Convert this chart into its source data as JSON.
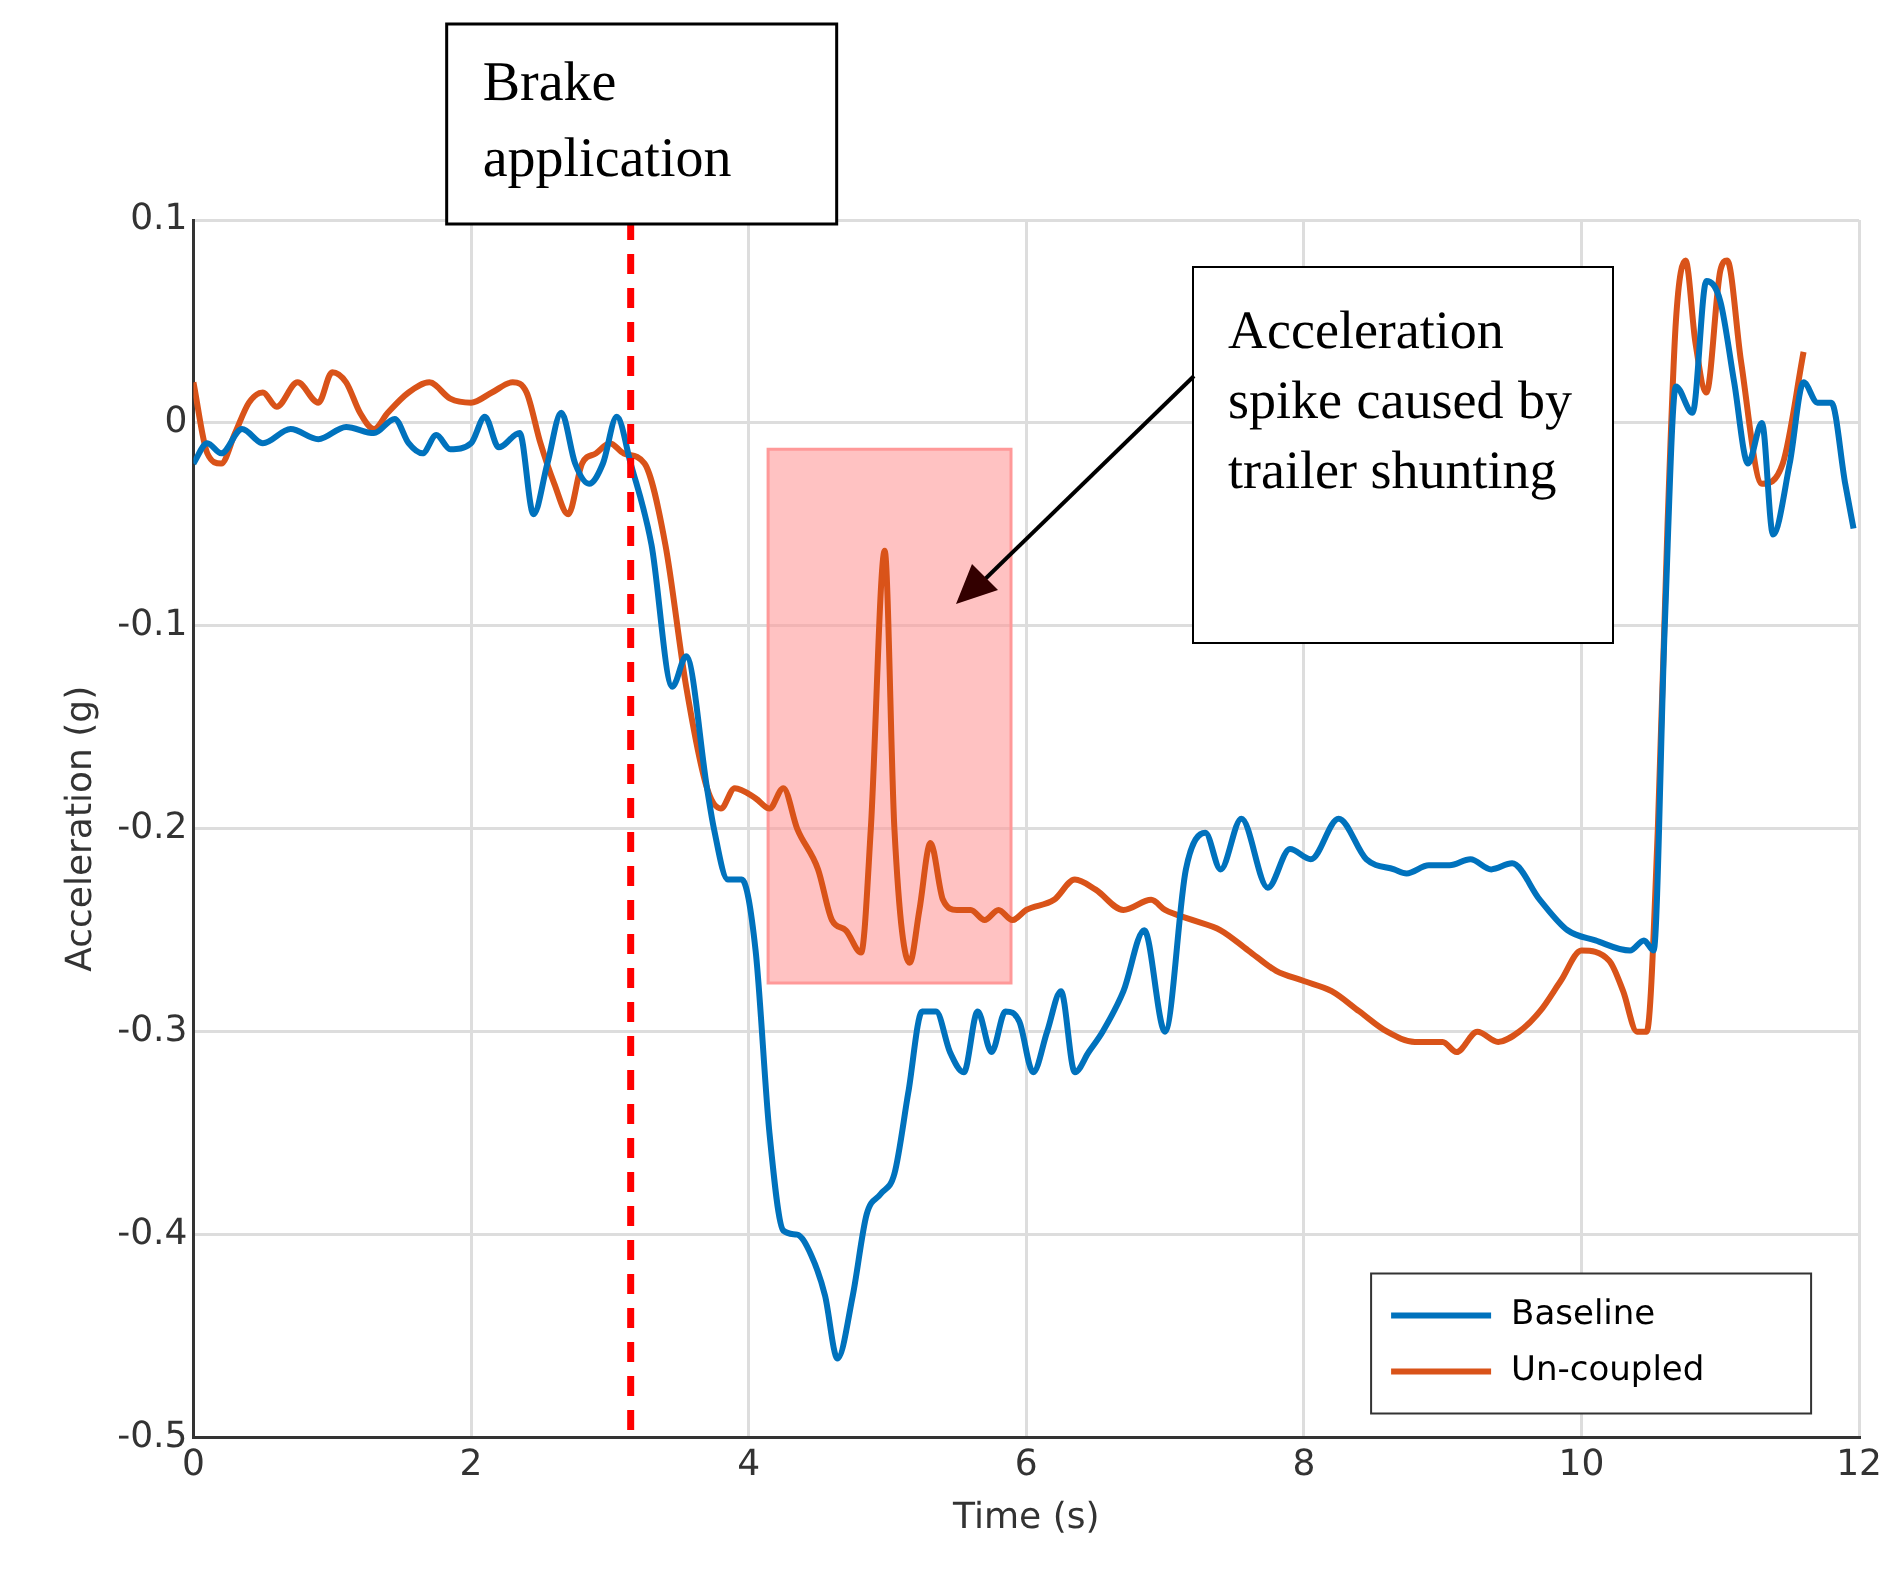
{
  "chart_data": {
    "type": "line",
    "xlabel": "Time (s)",
    "ylabel": "Acceleration (g)",
    "xlim": [
      0,
      12
    ],
    "xticks": [
      0,
      2,
      4,
      6,
      8,
      10,
      12
    ],
    "ylim": [
      -0.5,
      0.1
    ],
    "yticks": [
      -0.5,
      -0.4,
      -0.3,
      -0.2,
      -0.1,
      0,
      0.1
    ],
    "grid": true,
    "legend": "bottom right",
    "marker": "none",
    "line_style": "solid",
    "series": [
      {
        "name": "Baseline",
        "color": "#0072bd",
        "x": [
          0,
          0.1,
          0.2,
          0.35,
          0.5,
          0.7,
          0.9,
          1.1,
          1.3,
          1.45,
          1.55,
          1.65,
          1.75,
          1.85,
          2.0,
          2.1,
          2.2,
          2.35,
          2.45,
          2.55,
          2.65,
          2.75,
          2.85,
          2.95,
          3.05,
          3.15,
          3.3,
          3.45,
          3.55,
          3.7,
          3.75,
          3.85,
          3.95,
          4.05,
          4.15,
          4.25,
          4.35,
          4.45,
          4.55,
          4.64,
          4.75,
          4.85,
          4.95,
          5.05,
          5.15,
          5.25,
          5.35,
          5.45,
          5.55,
          5.65,
          5.75,
          5.85,
          5.95,
          6.05,
          6.15,
          6.25,
          6.35,
          6.45,
          6.55,
          6.7,
          6.85,
          7.0,
          7.15,
          7.29,
          7.4,
          7.55,
          7.74,
          7.9,
          8.05,
          8.25,
          8.45,
          8.65,
          8.74,
          8.9,
          9.05,
          9.2,
          9.35,
          9.5,
          9.7,
          9.9,
          10.1,
          10.35,
          10.45,
          10.52,
          10.6,
          10.68,
          10.8,
          10.9,
          11.0,
          11.1,
          11.2,
          11.3,
          11.38,
          11.5,
          11.6,
          11.7,
          11.8,
          11.9,
          11.96
        ],
        "values": [
          -0.02,
          -0.01,
          -0.015,
          -0.003,
          -0.01,
          -0.003,
          -0.008,
          -0.002,
          -0.005,
          0.002,
          -0.01,
          -0.015,
          -0.006,
          -0.013,
          -0.01,
          0.003,
          -0.012,
          -0.005,
          -0.045,
          -0.02,
          0.005,
          -0.02,
          -0.03,
          -0.02,
          0.003,
          -0.02,
          -0.06,
          -0.13,
          -0.115,
          -0.18,
          -0.2,
          -0.225,
          -0.225,
          -0.26,
          -0.35,
          -0.398,
          -0.4,
          -0.41,
          -0.43,
          -0.461,
          -0.43,
          -0.39,
          -0.38,
          -0.37,
          -0.33,
          -0.29,
          -0.29,
          -0.31,
          -0.32,
          -0.29,
          -0.31,
          -0.29,
          -0.295,
          -0.32,
          -0.3,
          -0.28,
          -0.32,
          -0.31,
          -0.3,
          -0.28,
          -0.25,
          -0.3,
          -0.22,
          -0.202,
          -0.22,
          -0.195,
          -0.229,
          -0.21,
          -0.215,
          -0.195,
          -0.215,
          -0.22,
          -0.222,
          -0.218,
          -0.218,
          -0.215,
          -0.22,
          -0.217,
          -0.235,
          -0.25,
          -0.255,
          -0.26,
          -0.255,
          -0.26,
          -0.1,
          0.018,
          0.005,
          0.07,
          0.06,
          0.02,
          -0.02,
          0.0,
          -0.055,
          -0.02,
          0.02,
          0.01,
          0.01,
          -0.03,
          -0.052
        ]
      },
      {
        "name": "Un-coupled",
        "color": "#d95319",
        "x": [
          0,
          0.1,
          0.2,
          0.3,
          0.4,
          0.5,
          0.6,
          0.75,
          0.9,
          1.0,
          1.1,
          1.2,
          1.3,
          1.4,
          1.55,
          1.7,
          1.85,
          2.0,
          2.15,
          2.3,
          2.4,
          2.5,
          2.6,
          2.7,
          2.8,
          2.9,
          3.0,
          3.1,
          3.25,
          3.4,
          3.55,
          3.7,
          3.8,
          3.9,
          4.05,
          4.15,
          4.25,
          4.35,
          4.5,
          4.6,
          4.7,
          4.81,
          4.88,
          4.98,
          5.05,
          5.16,
          5.23,
          5.31,
          5.4,
          5.5,
          5.6,
          5.7,
          5.8,
          5.9,
          6.0,
          6.2,
          6.35,
          6.5,
          6.7,
          6.9,
          7.0,
          7.2,
          7.4,
          7.6,
          7.8,
          8.0,
          8.2,
          8.4,
          8.6,
          8.8,
          9.0,
          9.1,
          9.25,
          9.4,
          9.55,
          9.7,
          9.85,
          10.0,
          10.2,
          10.3,
          10.4,
          10.47,
          10.55,
          10.62,
          10.68,
          10.75,
          10.82,
          10.9,
          11.0,
          11.05,
          11.15,
          11.3,
          11.45,
          11.6
        ],
        "values": [
          0.02,
          -0.015,
          -0.02,
          -0.005,
          0.01,
          0.015,
          0.008,
          0.02,
          0.01,
          0.025,
          0.02,
          0.005,
          -0.003,
          0.005,
          0.015,
          0.02,
          0.012,
          0.01,
          0.015,
          0.02,
          0.015,
          -0.01,
          -0.03,
          -0.045,
          -0.02,
          -0.015,
          -0.01,
          -0.015,
          -0.02,
          -0.06,
          -0.13,
          -0.18,
          -0.19,
          -0.18,
          -0.185,
          -0.19,
          -0.18,
          -0.2,
          -0.22,
          -0.245,
          -0.25,
          -0.261,
          -0.2,
          -0.063,
          -0.2,
          -0.266,
          -0.24,
          -0.207,
          -0.235,
          -0.24,
          -0.24,
          -0.245,
          -0.24,
          -0.245,
          -0.24,
          -0.235,
          -0.225,
          -0.23,
          -0.24,
          -0.235,
          -0.24,
          -0.245,
          -0.25,
          -0.26,
          -0.27,
          -0.275,
          -0.28,
          -0.29,
          -0.3,
          -0.305,
          -0.305,
          -0.31,
          -0.3,
          -0.305,
          -0.3,
          -0.29,
          -0.275,
          -0.26,
          -0.265,
          -0.28,
          -0.3,
          -0.3,
          -0.2,
          -0.05,
          0.05,
          0.08,
          0.04,
          0.015,
          0.075,
          0.08,
          0.03,
          -0.03,
          -0.02,
          0.035
        ]
      }
    ],
    "ref_lines": [
      {
        "axis": "x",
        "value": 3.15,
        "label": "Brake application",
        "color": "#ff0000",
        "line_style": "dashed"
      }
    ],
    "bands": [
      {
        "axis": "x",
        "from": 4.14,
        "to": 5.89,
        "label": null,
        "color": "#ff9999"
      }
    ],
    "annotations": [
      "Acceleration spike caused by trailer shunting"
    ]
  }
}
